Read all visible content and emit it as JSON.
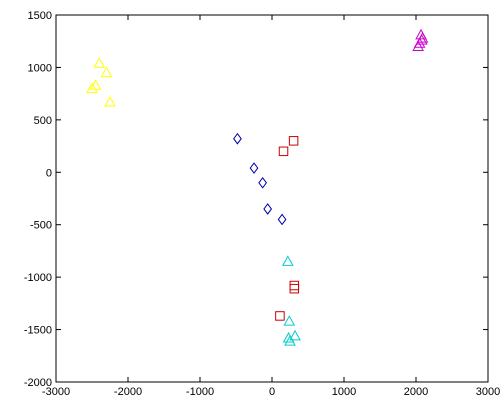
{
  "chart_data": {
    "type": "scatter",
    "title": "",
    "xlabel": "",
    "ylabel": "",
    "xlim": [
      -3000,
      3000
    ],
    "ylim": [
      -2000,
      1500
    ],
    "xticks": [
      -3000,
      -2000,
      -1000,
      0,
      1000,
      2000,
      3000
    ],
    "yticks": [
      -2000,
      -1500,
      -1000,
      -500,
      0,
      500,
      1000,
      1500
    ],
    "xtick_labels": [
      "-3000",
      "-2000",
      "-1000",
      "0",
      "1000",
      "2000",
      "3000"
    ],
    "ytick_labels": [
      "-2000",
      "-1500",
      "-1000",
      "-500",
      "0",
      "500",
      "1000",
      "1500"
    ],
    "grid": false,
    "series": [
      {
        "marker": "triangle",
        "color": "#ffff00",
        "points": [
          [
            -2400,
            1040
          ],
          [
            -2300,
            950
          ],
          [
            -2450,
            830
          ],
          [
            -2500,
            800
          ],
          [
            -2250,
            670
          ]
        ]
      },
      {
        "marker": "triangle",
        "color": "#cc00cc",
        "points": [
          [
            2070,
            1310
          ],
          [
            2080,
            1260
          ],
          [
            2030,
            1200
          ],
          [
            2050,
            1230
          ],
          [
            2090,
            1280
          ]
        ]
      },
      {
        "marker": "diamond",
        "color": "#0000aa",
        "points": [
          [
            -480,
            320
          ],
          [
            -250,
            40
          ],
          [
            -130,
            -100
          ],
          [
            -60,
            -350
          ],
          [
            140,
            -450
          ]
        ]
      },
      {
        "marker": "square",
        "color": "#cc0000",
        "points": [
          [
            300,
            300
          ],
          [
            160,
            200
          ],
          [
            310,
            -1080
          ],
          [
            310,
            -1110
          ],
          [
            110,
            -1370
          ]
        ]
      },
      {
        "marker": "triangle",
        "color": "#00cccc",
        "points": [
          [
            220,
            -850
          ],
          [
            240,
            -1420
          ],
          [
            320,
            -1560
          ],
          [
            230,
            -1580
          ],
          [
            250,
            -1610
          ]
        ]
      }
    ]
  }
}
